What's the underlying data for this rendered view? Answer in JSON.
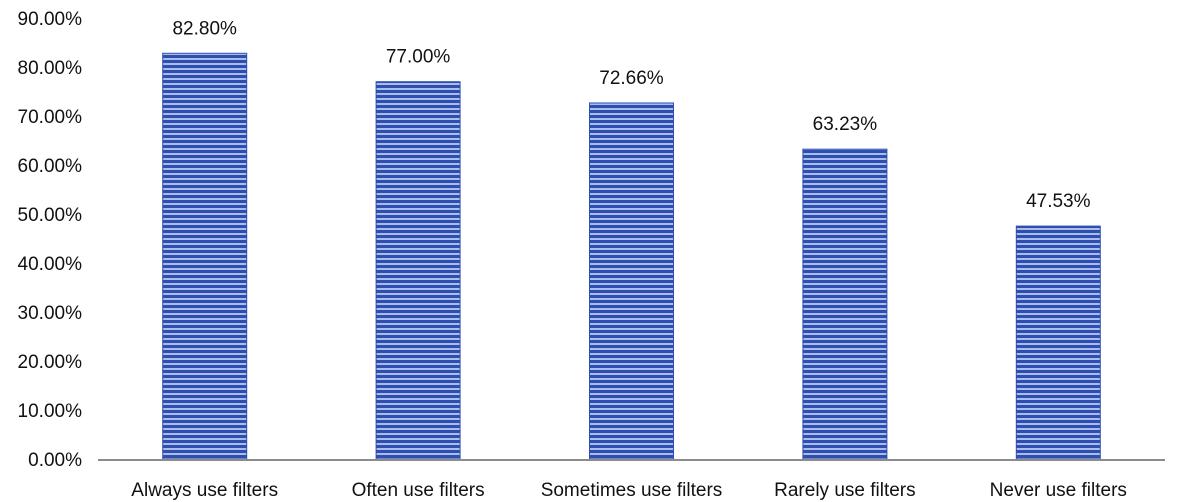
{
  "chart_data": {
    "type": "bar",
    "title": "",
    "xlabel": "",
    "ylabel": "",
    "categories": [
      "Always use filters",
      "Often use filters",
      "Sometimes use filters",
      "Rarely use filters",
      "Never use filters"
    ],
    "values": [
      82.8,
      77.0,
      72.66,
      63.23,
      47.53
    ],
    "data_labels": [
      "82.80%",
      "77.00%",
      "72.66%",
      "63.23%",
      "47.53%"
    ],
    "ylim": [
      0,
      90
    ],
    "yticks": [
      0,
      10,
      20,
      30,
      40,
      50,
      60,
      70,
      80,
      90
    ],
    "ytick_labels": [
      "0.00%",
      "10.00%",
      "20.00%",
      "30.00%",
      "40.00%",
      "50.00%",
      "60.00%",
      "70.00%",
      "80.00%",
      "90.00%"
    ],
    "grid": false,
    "legend": "none",
    "bar_color": "#2f4fb0",
    "bar_stripe_color": "#a9bcec",
    "axis_color": "#8c8c8c"
  }
}
